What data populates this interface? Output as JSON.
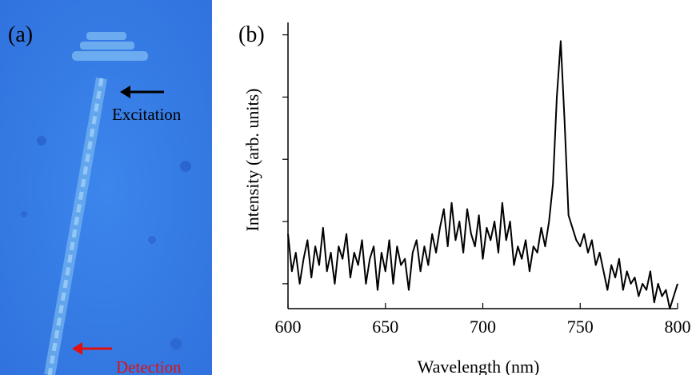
{
  "panel_a": {
    "label": "(a)",
    "excitation": "Excitation",
    "detection": "Detection"
  },
  "chart_data": {
    "type": "line",
    "panel_label": "(b)",
    "x_label": "Wavelength (nm)",
    "y_label": "Intensity (arb. units)",
    "x": [
      600,
      602,
      604,
      606,
      608,
      610,
      612,
      614,
      616,
      618,
      620,
      622,
      624,
      626,
      628,
      630,
      632,
      634,
      636,
      638,
      640,
      642,
      644,
      646,
      648,
      650,
      652,
      654,
      656,
      658,
      660,
      662,
      664,
      666,
      668,
      670,
      672,
      674,
      676,
      678,
      680,
      682,
      684,
      686,
      688,
      690,
      692,
      694,
      696,
      698,
      700,
      702,
      704,
      706,
      708,
      710,
      712,
      714,
      716,
      718,
      720,
      722,
      724,
      726,
      728,
      730,
      732,
      734,
      736,
      738,
      740,
      742,
      744,
      746,
      748,
      750,
      752,
      754,
      756,
      758,
      760,
      762,
      764,
      766,
      768,
      770,
      772,
      774,
      776,
      778,
      780,
      782,
      784,
      786,
      788,
      790,
      792,
      794,
      796,
      798,
      800
    ],
    "values": [
      1.8,
      1.2,
      1.5,
      1.0,
      1.4,
      1.7,
      1.1,
      1.6,
      1.3,
      1.9,
      1.2,
      1.5,
      1.0,
      1.6,
      1.4,
      1.8,
      1.1,
      1.5,
      1.3,
      1.7,
      1.0,
      1.4,
      1.6,
      0.9,
      1.5,
      1.2,
      1.7,
      1.0,
      1.6,
      1.3,
      1.4,
      0.9,
      1.5,
      1.7,
      1.2,
      1.6,
      1.3,
      1.8,
      1.5,
      1.9,
      2.2,
      1.6,
      2.3,
      1.7,
      2.0,
      1.5,
      2.2,
      1.8,
      1.6,
      2.1,
      1.4,
      1.9,
      1.7,
      2.0,
      1.5,
      2.3,
      1.7,
      2.0,
      1.3,
      1.6,
      1.4,
      1.7,
      1.2,
      1.6,
      1.5,
      1.9,
      1.6,
      2.0,
      2.6,
      4.0,
      4.9,
      3.6,
      2.1,
      1.9,
      1.7,
      1.6,
      1.8,
      1.5,
      1.7,
      1.3,
      1.5,
      1.2,
      0.9,
      1.3,
      1.1,
      1.4,
      0.9,
      1.2,
      1.0,
      1.1,
      0.8,
      1.0,
      0.9,
      1.2,
      0.7,
      1.0,
      0.8,
      0.9,
      0.6,
      0.8,
      1.0
    ],
    "color": "#000000",
    "xlim": [
      600,
      800
    ],
    "xticks": [
      600,
      650,
      700,
      750,
      800
    ],
    "ylim": [
      0.6,
      5.2
    ],
    "yticks": [
      1,
      2,
      3,
      4,
      5
    ]
  }
}
